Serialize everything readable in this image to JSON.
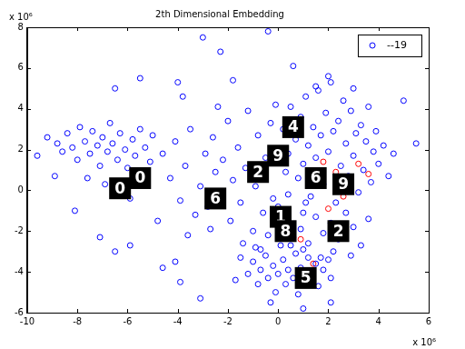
{
  "chart_data": {
    "type": "scatter",
    "title": "2th Dimensional Embedding",
    "x_multiplier": "x 10⁶",
    "y_multiplier": "x 10⁶",
    "xlim": [
      -10,
      6
    ],
    "ylim": [
      -6,
      8
    ],
    "xticks": [
      -10,
      -8,
      -6,
      -4,
      -2,
      0,
      2,
      4,
      6
    ],
    "yticks": [
      -6,
      -4,
      -2,
      0,
      2,
      4,
      6,
      8
    ],
    "grid": false,
    "legend": "northeast",
    "series": [
      {
        "name": "--19",
        "color": "#0000ff",
        "marker": "circle",
        "x": [
          -9.2,
          -8.8,
          -8.6,
          -8.4,
          -8.2,
          -8.0,
          -7.9,
          -7.7,
          -7.5,
          -7.4,
          -7.2,
          -7.1,
          -7.0,
          -6.8,
          -6.7,
          -6.6,
          -6.4,
          -6.3,
          -6.1,
          -6.0,
          -5.8,
          -5.7,
          -5.5,
          -5.3,
          -5.1,
          -8.9,
          -7.6,
          -6.9,
          -5.9,
          -5.0,
          -4.6,
          -4.3,
          -4.1,
          -3.9,
          -3.7,
          -3.5,
          -3.3,
          -3.1,
          -2.9,
          -2.8,
          -2.6,
          -2.5,
          -2.3,
          -2.2,
          -2.0,
          -1.9,
          -1.8,
          -1.6,
          -1.5,
          -1.3,
          -1.2,
          -1.0,
          -0.9,
          -0.8,
          -0.6,
          -0.5,
          -0.3,
          -0.2,
          -0.1,
          -4.8,
          -3.6,
          -2.7,
          -2.4,
          -1.4,
          -0.7,
          0.2,
          0.4,
          0.5,
          0.7,
          0.8,
          0.9,
          1.0,
          1.1,
          1.2,
          1.3,
          1.4,
          1.5,
          1.6,
          1.7,
          1.8,
          1.9,
          2.0,
          2.1,
          2.2,
          2.3,
          2.4,
          2.5,
          2.6,
          2.7,
          2.8,
          2.9,
          3.0,
          3.1,
          3.2,
          3.3,
          3.4,
          3.5,
          3.6,
          3.7,
          3.8,
          3.9,
          4.0,
          4.2,
          4.4,
          4.6,
          2.0,
          1.5,
          0.3,
          1.0,
          3.0,
          0.0,
          0.3,
          0.6,
          0.9,
          1.2,
          1.5,
          1.8,
          2.1,
          2.4,
          2.7,
          3.0,
          3.3,
          0.1,
          -0.4,
          2.2,
          2.9,
          3.6,
          1.1,
          0.4,
          1.7,
          -1.2,
          -1.0,
          -0.8,
          -0.7,
          -0.5,
          -0.4,
          -0.2,
          -0.1,
          0.0,
          0.2,
          0.3,
          0.4,
          0.6,
          0.7,
          0.8,
          0.9,
          1.1,
          1.2,
          1.3,
          1.5,
          1.6,
          1.8,
          2.0,
          2.1,
          -1.5,
          -1.7,
          -0.9,
          0.5,
          1.0,
          -0.3,
          -3.0,
          -0.4,
          -2.3,
          -6.5,
          -5.5,
          -4.0,
          -3.8,
          -8.1,
          -7.1,
          -6.5,
          -5.9,
          -4.6,
          -4.1,
          -3.9,
          -3.1,
          5.0,
          5.5,
          -9.6,
          1.0,
          2.1,
          -1.8,
          0.6
        ],
        "values": [
          2.6,
          2.3,
          1.9,
          2.8,
          2.1,
          1.5,
          3.1,
          2.4,
          1.8,
          2.9,
          2.2,
          1.2,
          2.6,
          1.9,
          3.3,
          2.3,
          1.5,
          2.8,
          2.0,
          1.1,
          2.5,
          1.7,
          3.0,
          2.1,
          1.4,
          0.7,
          0.6,
          0.3,
          -0.4,
          2.7,
          1.8,
          0.6,
          2.4,
          -0.5,
          1.2,
          3.0,
          -1.2,
          0.2,
          1.8,
          -0.8,
          2.6,
          0.9,
          -0.3,
          1.5,
          3.4,
          -1.5,
          0.5,
          2.1,
          -0.6,
          1.1,
          3.9,
          -2.0,
          0.2,
          2.7,
          -1.1,
          1.6,
          3.3,
          -0.4,
          4.2,
          -1.5,
          -2.2,
          -1.9,
          4.1,
          -2.6,
          -2.9,
          3.0,
          1.8,
          4.1,
          2.5,
          0.6,
          3.6,
          1.3,
          4.6,
          2.2,
          -0.3,
          3.1,
          1.6,
          4.9,
          2.7,
          0.3,
          3.8,
          1.9,
          5.3,
          2.9,
          -0.6,
          3.4,
          1.2,
          4.4,
          2.3,
          0.7,
          3.9,
          1.7,
          2.8,
          -0.1,
          3.2,
          1.0,
          2.4,
          4.1,
          0.4,
          1.9,
          2.9,
          1.3,
          2.2,
          0.7,
          1.8,
          5.6,
          5.1,
          0.9,
          -1.1,
          5.0,
          -0.8,
          -1.6,
          -2.3,
          -1.9,
          -2.6,
          -1.3,
          -2.1,
          -1.6,
          -2.4,
          -1.1,
          -1.8,
          -2.7,
          -2.7,
          -2.2,
          -3.0,
          -3.2,
          -1.4,
          -0.6,
          -0.2,
          -3.3,
          -4.1,
          -3.5,
          -4.6,
          -3.9,
          -3.2,
          -4.3,
          -3.7,
          -5.0,
          -4.1,
          -3.4,
          -4.6,
          -3.9,
          -4.3,
          -3.1,
          -5.1,
          -3.8,
          -4.4,
          -3.3,
          -4.0,
          -3.6,
          -4.7,
          -3.9,
          -3.4,
          -4.3,
          -3.3,
          -4.4,
          -2.8,
          -2.7,
          -2.9,
          -5.5,
          7.5,
          7.8,
          6.8,
          5.0,
          5.5,
          5.3,
          4.6,
          -1.0,
          -2.3,
          -3.0,
          -2.7,
          -3.8,
          -3.5,
          -4.5,
          -5.3,
          4.4,
          2.3,
          1.7,
          -5.8,
          -5.5,
          5.4,
          6.1
        ]
      },
      {
        "color": "#ff0000",
        "marker": "circle",
        "x": [
          2.0,
          2.6,
          3.2,
          1.4,
          2.3,
          0.9,
          3.6,
          1.8
        ],
        "values": [
          -0.9,
          -0.3,
          1.3,
          -3.6,
          0.9,
          -2.4,
          0.8,
          1.4
        ]
      }
    ],
    "annotations": [
      {
        "text": "0",
        "x": -5.5,
        "y": 0.6
      },
      {
        "text": "0",
        "x": -6.3,
        "y": 0.1
      },
      {
        "text": "6",
        "x": -2.5,
        "y": -0.4
      },
      {
        "text": "2",
        "x": -0.8,
        "y": 0.9
      },
      {
        "text": "9",
        "x": 0.0,
        "y": 1.7
      },
      {
        "text": "4",
        "x": 0.6,
        "y": 3.1
      },
      {
        "text": "6",
        "x": 1.5,
        "y": 0.6
      },
      {
        "text": "9",
        "x": 2.6,
        "y": 0.3
      },
      {
        "text": "1",
        "x": 0.1,
        "y": -1.3
      },
      {
        "text": "8",
        "x": 0.3,
        "y": -2.0
      },
      {
        "text": "2",
        "x": 2.4,
        "y": -2.0
      },
      {
        "text": "5",
        "x": 1.1,
        "y": -4.3
      }
    ]
  }
}
